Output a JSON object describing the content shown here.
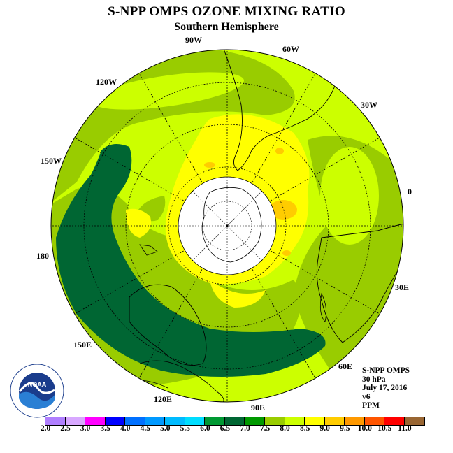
{
  "header": {
    "title": "S-NPP OMPS OZONE MIXING RATIO",
    "subtitle": "Southern Hemisphere"
  },
  "map": {
    "projection": "south-polar-stereographic",
    "longitude_labels": [
      "0",
      "30E",
      "60E",
      "90E",
      "120E",
      "150E",
      "180",
      "150W",
      "120W",
      "90W",
      "60W",
      "30W"
    ],
    "colors": {
      "ocean_boundary": "#000000",
      "polar_gap": "#ffffff",
      "dark_green": "#006633",
      "green": "#339933",
      "light_green": "#99cc00",
      "yellow_green": "#ccff00",
      "yellow": "#ffff00",
      "gold": "#ffcc00",
      "orange": "#ff9900"
    }
  },
  "info": {
    "instrument": "S-NPP OMPS",
    "level": "30 hPa",
    "date": "July 17, 2016",
    "version": "v6",
    "units": "PPM"
  },
  "logo": {
    "name": "NOAA",
    "text": "NOAA"
  },
  "colorbar": {
    "ticks": [
      "2.0",
      "2.5",
      "3.0",
      "3.5",
      "4.0",
      "4.5",
      "5.0",
      "5.5",
      "6.0",
      "6.5",
      "7.0",
      "7.5",
      "8.0",
      "8.5",
      "9.0",
      "9.5",
      "10.0",
      "10.5",
      "11.0"
    ],
    "colors": [
      "#b07fff",
      "#d8a8ff",
      "#ff00ff",
      "#0000ff",
      "#0070ff",
      "#0099ff",
      "#00bbff",
      "#00ddff",
      "#009933",
      "#006633",
      "#009900",
      "#99cc00",
      "#ccff00",
      "#ffff00",
      "#ffcc00",
      "#ff9900",
      "#ff5500",
      "#ff0000",
      "#996633"
    ]
  }
}
